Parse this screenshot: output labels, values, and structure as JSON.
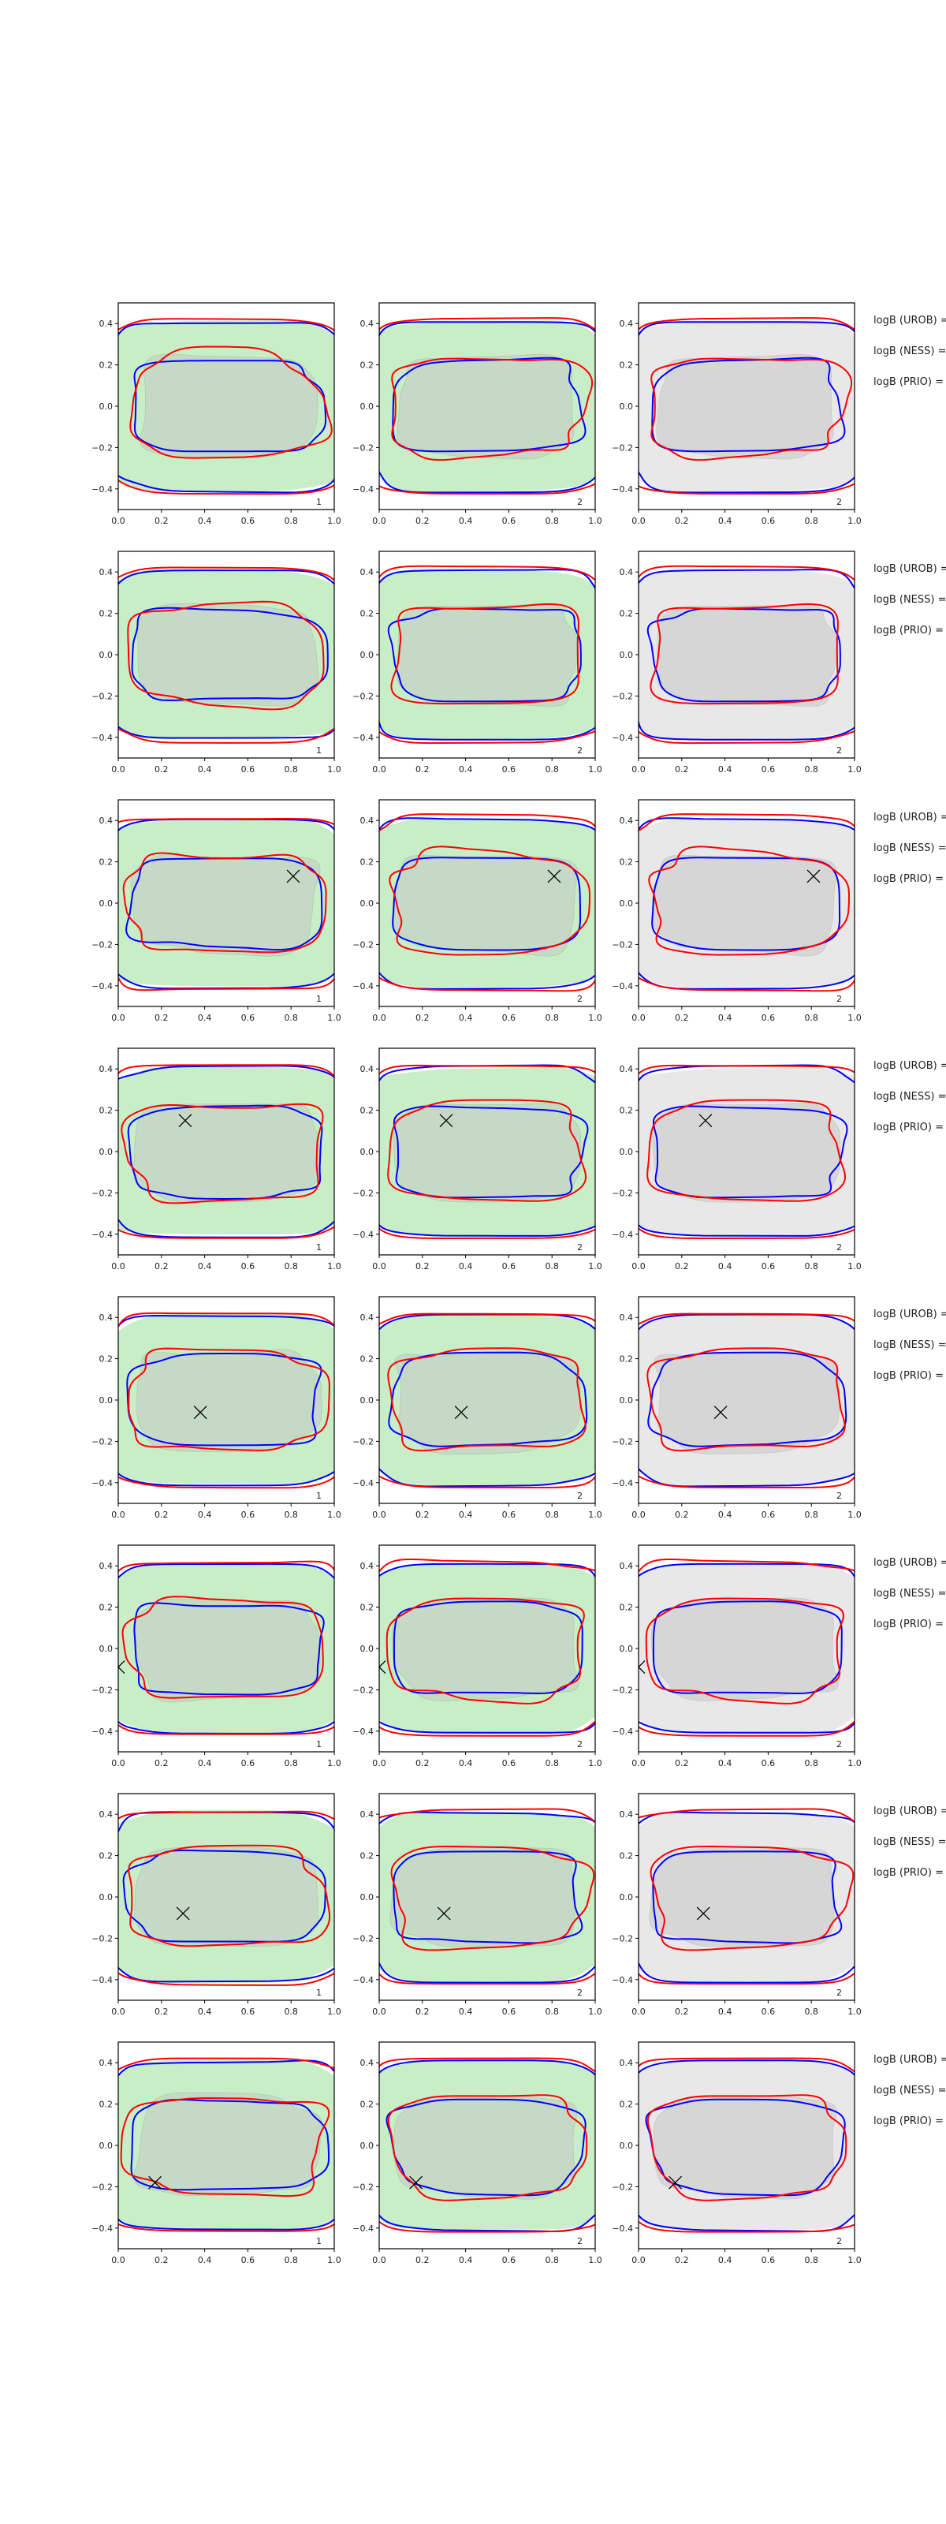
{
  "chart_data": {
    "type": "contour",
    "title": "",
    "layout": {
      "rows": 8,
      "cols": 3
    },
    "xlim": [
      0.0,
      1.0
    ],
    "ylim": [
      -0.5,
      0.5
    ],
    "xticks": [
      "0.0",
      "0.2",
      "0.4",
      "0.6",
      "0.8",
      "1.0"
    ],
    "yticks": [
      "0.4",
      "0.2",
      "0.0",
      "−0.2",
      "−0.4"
    ],
    "ytick_values": [
      0.4,
      0.2,
      0.0,
      -0.2,
      -0.4
    ],
    "xtick_values": [
      0.0,
      0.2,
      0.4,
      0.6,
      0.8,
      1.0
    ],
    "colors": {
      "red_contour": "#ff0000",
      "blue_contour": "#0000ff",
      "green_fill_outer": "#c8eec8",
      "green_fill_inner": "#c6d9c6",
      "grey_fill_outer": "#e8e8e8",
      "grey_fill_inner": "#d6d6d6",
      "marker": "#000000"
    },
    "columns": [
      {
        "fill": "green",
        "panel_label": "1"
      },
      {
        "fill": "green",
        "panel_label": "2"
      },
      {
        "fill": "grey",
        "panel_label": "2"
      }
    ],
    "side_labels": [
      "logB (UROB) =",
      "logB (NESS) =",
      "logB (PRIO) ="
    ],
    "rows": [
      {
        "marker": null
      },
      {
        "marker": null
      },
      {
        "marker": {
          "x": 0.81,
          "y": 0.13
        }
      },
      {
        "marker": {
          "x": 0.31,
          "y": 0.15
        }
      },
      {
        "marker": {
          "x": 0.38,
          "y": -0.06
        }
      },
      {
        "marker": {
          "x": 0.0,
          "y": -0.09
        }
      },
      {
        "marker": {
          "x": 0.3,
          "y": -0.08
        }
      },
      {
        "marker": {
          "x": 0.17,
          "y": -0.18
        }
      }
    ]
  }
}
